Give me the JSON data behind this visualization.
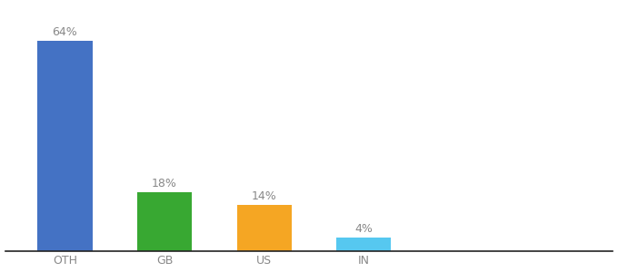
{
  "categories": [
    "OTH",
    "GB",
    "US",
    "IN"
  ],
  "values": [
    64,
    18,
    14,
    4
  ],
  "labels": [
    "64%",
    "18%",
    "14%",
    "4%"
  ],
  "bar_colors": [
    "#4472C4",
    "#38A832",
    "#F5A623",
    "#56C8F0"
  ],
  "background_color": "#ffffff",
  "ylim": [
    0,
    75
  ],
  "label_fontsize": 9,
  "tick_fontsize": 9,
  "label_color": "#888888",
  "bar_width": 0.55,
  "x_positions": [
    0,
    1,
    2,
    3
  ]
}
